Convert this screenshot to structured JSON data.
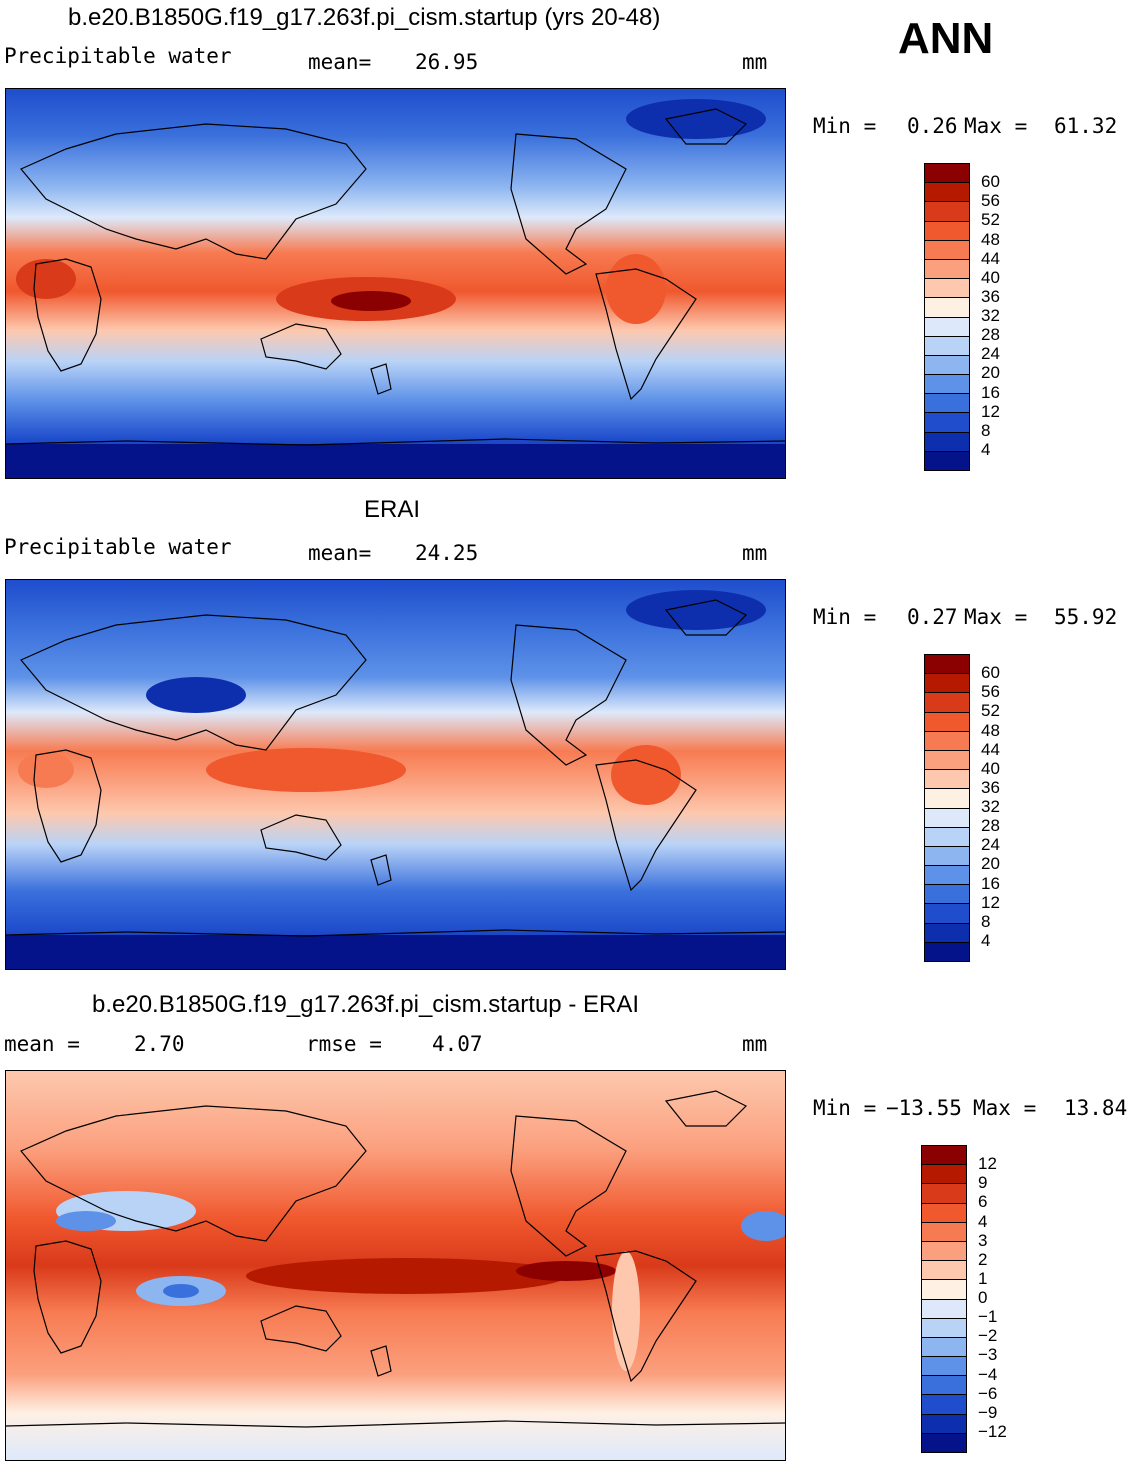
{
  "season": "ANN",
  "panels": [
    {
      "title": "b.e20.B1850G.f19_g17.263f.pi_cism.startup (yrs 20-48)",
      "left_label": "Precipitable water",
      "stat1_label": "mean=",
      "stat1_value": "26.95",
      "stat2_label": "",
      "stat2_value": "",
      "units": "mm",
      "min_label": "Min =",
      "min_value": "0.26",
      "max_label": "Max =",
      "max_value": "61.32",
      "colorbar": {
        "labels": [
          "60",
          "56",
          "52",
          "48",
          "44",
          "40",
          "36",
          "32",
          "28",
          "24",
          "20",
          "16",
          "12",
          "8",
          "4"
        ],
        "colors": [
          "#8b0000",
          "#b51a00",
          "#d93a1a",
          "#f0582e",
          "#f77b52",
          "#fba07e",
          "#fdc8ae",
          "#fff0e4",
          "#dde9fb",
          "#b9d3f7",
          "#8db5f0",
          "#5e92e8",
          "#3a70dc",
          "#1f4dcc",
          "#0d2fae",
          "#04138a"
        ]
      }
    },
    {
      "title": "ERAI",
      "left_label": "Precipitable water",
      "stat1_label": "mean=",
      "stat1_value": "24.25",
      "stat2_label": "",
      "stat2_value": "",
      "units": "mm",
      "min_label": "Min =",
      "min_value": "0.27",
      "max_label": "Max =",
      "max_value": "55.92",
      "colorbar": {
        "labels": [
          "60",
          "56",
          "52",
          "48",
          "44",
          "40",
          "36",
          "32",
          "28",
          "24",
          "20",
          "16",
          "12",
          "8",
          "4"
        ],
        "colors": [
          "#8b0000",
          "#b51a00",
          "#d93a1a",
          "#f0582e",
          "#f77b52",
          "#fba07e",
          "#fdc8ae",
          "#fff0e4",
          "#dde9fb",
          "#b9d3f7",
          "#8db5f0",
          "#5e92e8",
          "#3a70dc",
          "#1f4dcc",
          "#0d2fae",
          "#04138a"
        ]
      }
    },
    {
      "title": "b.e20.B1850G.f19_g17.263f.pi_cism.startup - ERAI",
      "left_label": "",
      "stat1_label": "mean =",
      "stat1_value": "2.70",
      "stat2_label": "rmse =",
      "stat2_value": "4.07",
      "units": "mm",
      "min_label": "Min =",
      "min_value": "−13.55",
      "max_label": "Max =",
      "max_value": "13.84",
      "colorbar": {
        "labels": [
          "12",
          "9",
          "6",
          "4",
          "3",
          "2",
          "1",
          "0",
          "−1",
          "−2",
          "−3",
          "−4",
          "−6",
          "−9",
          "−12"
        ],
        "colors": [
          "#8b0000",
          "#b51a00",
          "#d93a1a",
          "#f0582e",
          "#f77b52",
          "#fba07e",
          "#fdc8ae",
          "#fff0e4",
          "#dde9fb",
          "#b9d3f7",
          "#8db5f0",
          "#5e92e8",
          "#3a70dc",
          "#1f4dcc",
          "#0d2fae",
          "#04138a"
        ]
      }
    }
  ]
}
